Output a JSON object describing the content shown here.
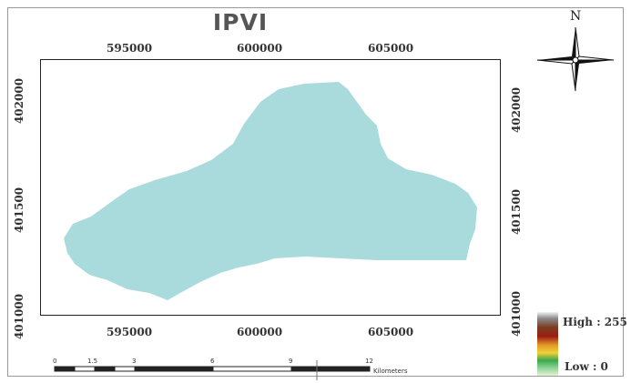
{
  "map": {
    "title": "IPVI",
    "north_label": "N",
    "coords_top": [
      "595000",
      "600000",
      "605000"
    ],
    "coords_bottom": [
      "595000",
      "600000",
      "605000"
    ],
    "coords_left": [
      "402000",
      "401500",
      "401000"
    ],
    "coords_right": [
      "402000",
      "401500",
      "401000"
    ],
    "fill_color": "#a9dbdc"
  },
  "legend": {
    "high_label": "High : 255",
    "low_label": "Low : 0"
  },
  "scalebar": {
    "ticks": [
      "0",
      "1.5",
      "3",
      "6",
      "9",
      "12"
    ],
    "unit": "Kilometers"
  }
}
